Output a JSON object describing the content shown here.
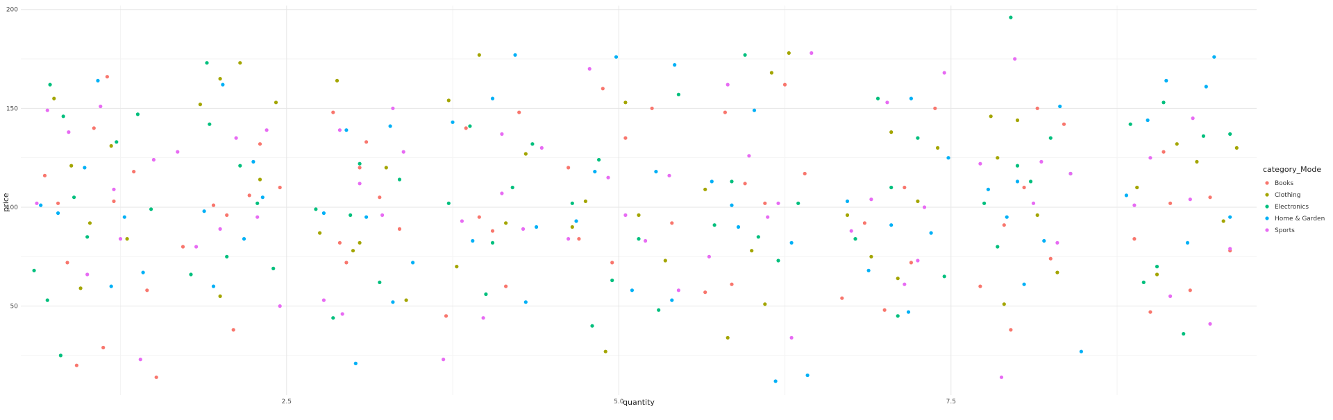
{
  "chart_data": {
    "type": "scatter",
    "title": "",
    "xlabel": "quantity",
    "ylabel": "price",
    "xlim": [
      0.5,
      9.8
    ],
    "ylim": [
      5,
      202
    ],
    "x_ticks": [
      2.5,
      5.0,
      7.5
    ],
    "x_tick_labels": [
      "2.5",
      "5.0",
      "7.5"
    ],
    "y_ticks": [
      50,
      100,
      150,
      200
    ],
    "y_tick_labels": [
      "50",
      "100",
      "150",
      "200"
    ],
    "grid": true,
    "legend": {
      "title": "category_Mode",
      "position": "right",
      "entries": [
        "Books",
        "Clothing",
        "Electronics",
        "Home & Garden",
        "Sports"
      ]
    },
    "colors": {
      "Books": "#F8766D",
      "Clothing": "#A3A500",
      "Electronics": "#00BF7D",
      "Home & Garden": "#00B0F6",
      "Sports": "#E76BF3"
    },
    "series": [
      {
        "name": "Books",
        "points": [
          [
            0.68,
            116
          ],
          [
            0.85,
            72
          ],
          [
            0.92,
            20
          ],
          [
            1.05,
            140
          ],
          [
            1.15,
            166
          ],
          [
            1.2,
            103
          ],
          [
            1.35,
            118
          ],
          [
            1.45,
            58
          ],
          [
            1.52,
            14
          ],
          [
            1.12,
            29
          ],
          [
            0.78,
            102
          ],
          [
            1.72,
            80
          ],
          [
            1.95,
            101
          ],
          [
            2.05,
            96
          ],
          [
            2.22,
            106
          ],
          [
            2.1,
            38
          ],
          [
            2.3,
            132
          ],
          [
            2.45,
            110
          ],
          [
            2.85,
            148
          ],
          [
            2.9,
            82
          ],
          [
            3.05,
            120
          ],
          [
            3.2,
            105
          ],
          [
            3.35,
            89
          ],
          [
            3.1,
            133
          ],
          [
            2.95,
            72
          ],
          [
            3.7,
            45
          ],
          [
            3.85,
            140
          ],
          [
            3.95,
            95
          ],
          [
            4.15,
            60
          ],
          [
            4.25,
            148
          ],
          [
            4.05,
            88
          ],
          [
            4.62,
            120
          ],
          [
            4.7,
            84
          ],
          [
            4.88,
            160
          ],
          [
            5.05,
            135
          ],
          [
            5.25,
            150
          ],
          [
            5.4,
            92
          ],
          [
            4.95,
            72
          ],
          [
            5.65,
            57
          ],
          [
            5.8,
            148
          ],
          [
            5.95,
            112
          ],
          [
            6.1,
            102
          ],
          [
            6.25,
            162
          ],
          [
            6.4,
            117
          ],
          [
            5.85,
            61
          ],
          [
            6.68,
            54
          ],
          [
            6.85,
            92
          ],
          [
            7.0,
            48
          ],
          [
            7.2,
            72
          ],
          [
            7.38,
            150
          ],
          [
            7.15,
            110
          ],
          [
            7.72,
            60
          ],
          [
            7.9,
            91
          ],
          [
            8.05,
            110
          ],
          [
            8.15,
            150
          ],
          [
            8.25,
            74
          ],
          [
            8.35,
            142
          ],
          [
            7.95,
            38
          ],
          [
            8.88,
            84
          ],
          [
            9.0,
            47
          ],
          [
            9.15,
            102
          ],
          [
            9.3,
            58
          ],
          [
            9.45,
            105
          ],
          [
            9.6,
            78
          ],
          [
            9.1,
            128
          ]
        ]
      },
      {
        "name": "Clothing",
        "points": [
          [
            0.75,
            155
          ],
          [
            0.88,
            121
          ],
          [
            1.02,
            92
          ],
          [
            1.18,
            131
          ],
          [
            1.3,
            84
          ],
          [
            0.95,
            59
          ],
          [
            1.85,
            152
          ],
          [
            2.0,
            165
          ],
          [
            2.15,
            173
          ],
          [
            2.3,
            114
          ],
          [
            2.42,
            153
          ],
          [
            2.0,
            55
          ],
          [
            2.75,
            87
          ],
          [
            2.88,
            164
          ],
          [
            3.05,
            82
          ],
          [
            3.25,
            120
          ],
          [
            3.4,
            53
          ],
          [
            3.0,
            78
          ],
          [
            3.72,
            154
          ],
          [
            3.95,
            177
          ],
          [
            4.15,
            92
          ],
          [
            4.3,
            127
          ],
          [
            3.78,
            70
          ],
          [
            4.65,
            90
          ],
          [
            4.75,
            103
          ],
          [
            4.9,
            27
          ],
          [
            5.15,
            96
          ],
          [
            5.35,
            73
          ],
          [
            5.05,
            153
          ],
          [
            5.65,
            109
          ],
          [
            5.82,
            34
          ],
          [
            6.0,
            78
          ],
          [
            6.15,
            168
          ],
          [
            6.28,
            178
          ],
          [
            6.1,
            51
          ],
          [
            6.72,
            96
          ],
          [
            6.9,
            75
          ],
          [
            7.05,
            138
          ],
          [
            7.25,
            103
          ],
          [
            7.4,
            130
          ],
          [
            7.1,
            64
          ],
          [
            7.8,
            146
          ],
          [
            7.9,
            51
          ],
          [
            8.0,
            144
          ],
          [
            8.15,
            96
          ],
          [
            8.3,
            67
          ],
          [
            7.85,
            125
          ],
          [
            8.9,
            110
          ],
          [
            9.05,
            66
          ],
          [
            9.2,
            132
          ],
          [
            9.35,
            123
          ],
          [
            9.55,
            93
          ],
          [
            9.65,
            130
          ]
        ]
      },
      {
        "name": "Electronics",
        "points": [
          [
            0.6,
            68
          ],
          [
            0.72,
            162
          ],
          [
            0.82,
            146
          ],
          [
            0.9,
            105
          ],
          [
            1.0,
            85
          ],
          [
            1.22,
            133
          ],
          [
            1.38,
            147
          ],
          [
            1.48,
            99
          ],
          [
            0.8,
            25
          ],
          [
            0.7,
            53
          ],
          [
            1.78,
            66
          ],
          [
            1.92,
            142
          ],
          [
            2.05,
            75
          ],
          [
            2.15,
            121
          ],
          [
            2.28,
            102
          ],
          [
            2.4,
            69
          ],
          [
            1.9,
            173
          ],
          [
            2.72,
            99
          ],
          [
            2.85,
            44
          ],
          [
            3.05,
            122
          ],
          [
            3.2,
            62
          ],
          [
            3.35,
            114
          ],
          [
            2.98,
            96
          ],
          [
            3.72,
            102
          ],
          [
            3.88,
            141
          ],
          [
            4.0,
            56
          ],
          [
            4.2,
            110
          ],
          [
            4.35,
            132
          ],
          [
            4.05,
            82
          ],
          [
            4.65,
            102
          ],
          [
            4.85,
            124
          ],
          [
            4.95,
            63
          ],
          [
            5.15,
            84
          ],
          [
            5.3,
            48
          ],
          [
            5.45,
            157
          ],
          [
            4.8,
            40
          ],
          [
            5.72,
            91
          ],
          [
            5.85,
            113
          ],
          [
            6.05,
            85
          ],
          [
            6.2,
            73
          ],
          [
            6.35,
            102
          ],
          [
            5.95,
            177
          ],
          [
            6.78,
            84
          ],
          [
            6.95,
            155
          ],
          [
            7.1,
            45
          ],
          [
            7.25,
            135
          ],
          [
            7.45,
            65
          ],
          [
            7.05,
            110
          ],
          [
            7.75,
            102
          ],
          [
            7.85,
            80
          ],
          [
            8.0,
            121
          ],
          [
            8.1,
            113
          ],
          [
            8.25,
            135
          ],
          [
            8.4,
            117
          ],
          [
            7.95,
            196
          ],
          [
            8.85,
            142
          ],
          [
            8.95,
            62
          ],
          [
            9.1,
            153
          ],
          [
            9.25,
            36
          ],
          [
            9.4,
            136
          ],
          [
            9.6,
            137
          ],
          [
            9.05,
            70
          ]
        ]
      },
      {
        "name": "Home & Garden",
        "points": [
          [
            0.65,
            101
          ],
          [
            0.78,
            97
          ],
          [
            0.98,
            120
          ],
          [
            1.08,
            164
          ],
          [
            1.28,
            95
          ],
          [
            1.42,
            67
          ],
          [
            1.18,
            60
          ],
          [
            1.88,
            98
          ],
          [
            2.02,
            162
          ],
          [
            2.18,
            84
          ],
          [
            2.32,
            105
          ],
          [
            1.95,
            60
          ],
          [
            2.25,
            123
          ],
          [
            2.78,
            97
          ],
          [
            2.95,
            139
          ],
          [
            3.1,
            95
          ],
          [
            3.28,
            141
          ],
          [
            3.45,
            72
          ],
          [
            3.02,
            21
          ],
          [
            3.3,
            52
          ],
          [
            3.75,
            143
          ],
          [
            3.9,
            83
          ],
          [
            4.05,
            155
          ],
          [
            4.22,
            177
          ],
          [
            4.38,
            90
          ],
          [
            4.3,
            52
          ],
          [
            4.68,
            93
          ],
          [
            4.82,
            118
          ],
          [
            4.98,
            176
          ],
          [
            5.1,
            58
          ],
          [
            5.28,
            118
          ],
          [
            5.42,
            172
          ],
          [
            5.4,
            53
          ],
          [
            5.7,
            113
          ],
          [
            5.85,
            101
          ],
          [
            6.02,
            149
          ],
          [
            6.18,
            12
          ],
          [
            6.3,
            82
          ],
          [
            6.42,
            15
          ],
          [
            5.9,
            90
          ],
          [
            6.72,
            103
          ],
          [
            6.88,
            68
          ],
          [
            7.05,
            91
          ],
          [
            7.18,
            47
          ],
          [
            7.35,
            87
          ],
          [
            7.48,
            125
          ],
          [
            7.2,
            155
          ],
          [
            7.78,
            109
          ],
          [
            7.92,
            95
          ],
          [
            8.05,
            61
          ],
          [
            8.2,
            83
          ],
          [
            8.32,
            151
          ],
          [
            8.48,
            27
          ],
          [
            8.0,
            113
          ],
          [
            8.82,
            106
          ],
          [
            8.98,
            144
          ],
          [
            9.12,
            164
          ],
          [
            9.28,
            82
          ],
          [
            9.42,
            161
          ],
          [
            9.48,
            176
          ],
          [
            9.6,
            95
          ]
        ]
      },
      {
        "name": "Sports",
        "points": [
          [
            0.62,
            102
          ],
          [
            0.7,
            149
          ],
          [
            0.86,
            138
          ],
          [
            1.0,
            66
          ],
          [
            1.1,
            151
          ],
          [
            1.25,
            84
          ],
          [
            1.4,
            23
          ],
          [
            1.5,
            124
          ],
          [
            1.2,
            109
          ],
          [
            1.68,
            128
          ],
          [
            1.82,
            80
          ],
          [
            2.0,
            89
          ],
          [
            2.12,
            135
          ],
          [
            2.28,
            95
          ],
          [
            2.45,
            50
          ],
          [
            2.35,
            139
          ],
          [
            2.78,
            53
          ],
          [
            2.9,
            139
          ],
          [
            3.05,
            112
          ],
          [
            3.22,
            96
          ],
          [
            3.38,
            128
          ],
          [
            2.92,
            46
          ],
          [
            3.3,
            150
          ],
          [
            3.68,
            23
          ],
          [
            3.82,
            93
          ],
          [
            3.98,
            44
          ],
          [
            4.12,
            107
          ],
          [
            4.28,
            89
          ],
          [
            4.42,
            130
          ],
          [
            4.12,
            137
          ],
          [
            4.62,
            84
          ],
          [
            4.78,
            170
          ],
          [
            4.92,
            115
          ],
          [
            5.05,
            96
          ],
          [
            5.2,
            83
          ],
          [
            5.38,
            116
          ],
          [
            5.45,
            58
          ],
          [
            5.68,
            75
          ],
          [
            5.82,
            162
          ],
          [
            5.98,
            126
          ],
          [
            6.12,
            95
          ],
          [
            6.3,
            34
          ],
          [
            6.45,
            178
          ],
          [
            6.2,
            102
          ],
          [
            6.75,
            88
          ],
          [
            6.9,
            104
          ],
          [
            7.02,
            153
          ],
          [
            7.15,
            61
          ],
          [
            7.3,
            100
          ],
          [
            7.45,
            168
          ],
          [
            7.25,
            73
          ],
          [
            7.72,
            122
          ],
          [
            7.88,
            14
          ],
          [
            7.98,
            175
          ],
          [
            8.12,
            102
          ],
          [
            8.3,
            82
          ],
          [
            8.4,
            117
          ],
          [
            8.18,
            123
          ],
          [
            8.88,
            101
          ],
          [
            9.0,
            125
          ],
          [
            9.15,
            55
          ],
          [
            9.32,
            145
          ],
          [
            9.45,
            41
          ],
          [
            9.6,
            79
          ],
          [
            9.3,
            104
          ]
        ]
      }
    ]
  }
}
